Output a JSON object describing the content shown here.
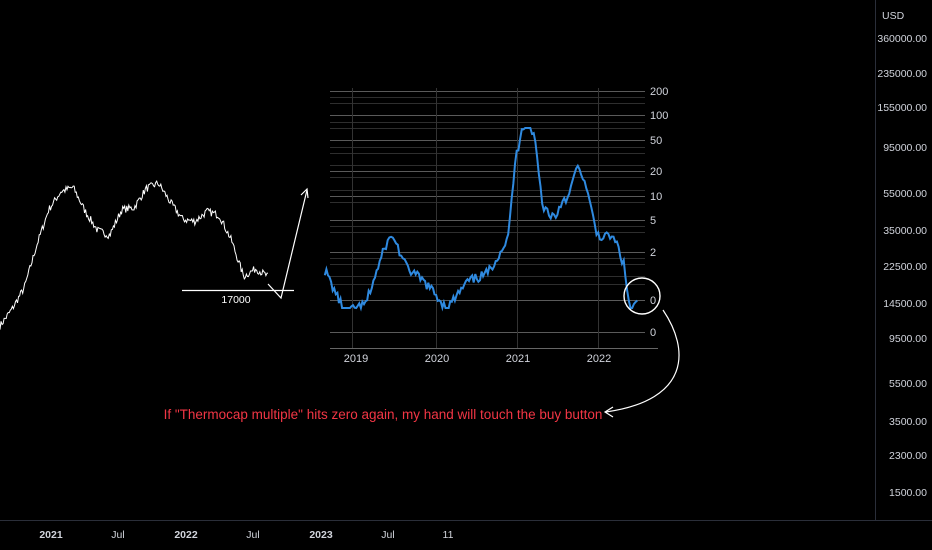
{
  "price_axis": {
    "currency": "USD",
    "labels": [
      "360000.00",
      "235000.00",
      "155000.00",
      "95000.00",
      "55000.00",
      "35000.00",
      "22500.00",
      "14500.00",
      "9500.00",
      "5500.00",
      "3500.00",
      "2300.00",
      "1500.00"
    ],
    "scale": "log"
  },
  "time_axis": {
    "labels": [
      "2021",
      "Jul",
      "2022",
      "Jul",
      "2023",
      "Jul",
      "11"
    ],
    "bold_labels": [
      "2021",
      "2022",
      "2023"
    ]
  },
  "annotation": {
    "level_label": "17000",
    "note": "If \"Thermocap multiple\" hits zero again, my hand will touch the buy button",
    "note_color": "#f23645"
  },
  "colors": {
    "background": "#000000",
    "main_price_line": "#ffffff",
    "inset_line": "#2f8ae0",
    "grid": "#4a4a4a",
    "axis_text": "#d1d4dc"
  },
  "chart_data": [
    {
      "type": "line",
      "name": "main-price-chart",
      "x": [
        "2020-10",
        "2020-11",
        "2020-12",
        "2021-01",
        "2021-02",
        "2021-03",
        "2021-04",
        "2021-05",
        "2021-06",
        "2021-07",
        "2021-08",
        "2021-09",
        "2021-10",
        "2021-11",
        "2021-12",
        "2022-01",
        "2022-02",
        "2022-03",
        "2022-04",
        "2022-05",
        "2022-06",
        "2022-07",
        "2022-08"
      ],
      "series": [
        {
          "values": [
            11000,
            13500,
            17500,
            29000,
            45000,
            56000,
            59000,
            44000,
            35000,
            33000,
            45000,
            46000,
            58000,
            62000,
            49000,
            40000,
            39000,
            44000,
            42000,
            31000,
            20000,
            22000,
            20000
          ]
        }
      ],
      "ylabel": "USD",
      "yscale": "log",
      "ylim": [
        1000,
        500000
      ]
    },
    {
      "type": "line",
      "name": "thermocap-multiple-inset",
      "x": [
        "2018-09",
        "2018-12",
        "2019-03",
        "2019-06",
        "2019-07",
        "2019-09",
        "2019-12",
        "2020-03",
        "2020-06",
        "2020-09",
        "2020-12",
        "2021-01",
        "2021-02",
        "2021-03",
        "2021-04",
        "2021-05",
        "2021-06",
        "2021-07",
        "2021-08",
        "2021-09",
        "2021-10",
        "2021-11",
        "2021-12",
        "2022-01",
        "2022-02",
        "2022-03",
        "2022-04",
        "2022-05",
        "2022-06",
        "2022-07"
      ],
      "series": [
        {
          "values": [
            1.2,
            0.35,
            0.45,
            2.5,
            3.2,
            1.3,
            0.8,
            0.4,
            0.85,
            1.1,
            3,
            25,
            70,
            95,
            45,
            8,
            6,
            5.5,
            9,
            10,
            22,
            18,
            8,
            3.5,
            3,
            3.2,
            2.5,
            1.4,
            0.35,
            0.5
          ]
        }
      ],
      "y_ticks": [
        "200",
        "100",
        "50",
        "20",
        "10",
        "5",
        "2",
        "0",
        "0"
      ],
      "x_ticks": [
        "2019",
        "2020",
        "2021",
        "2022"
      ],
      "yscale": "log"
    }
  ]
}
